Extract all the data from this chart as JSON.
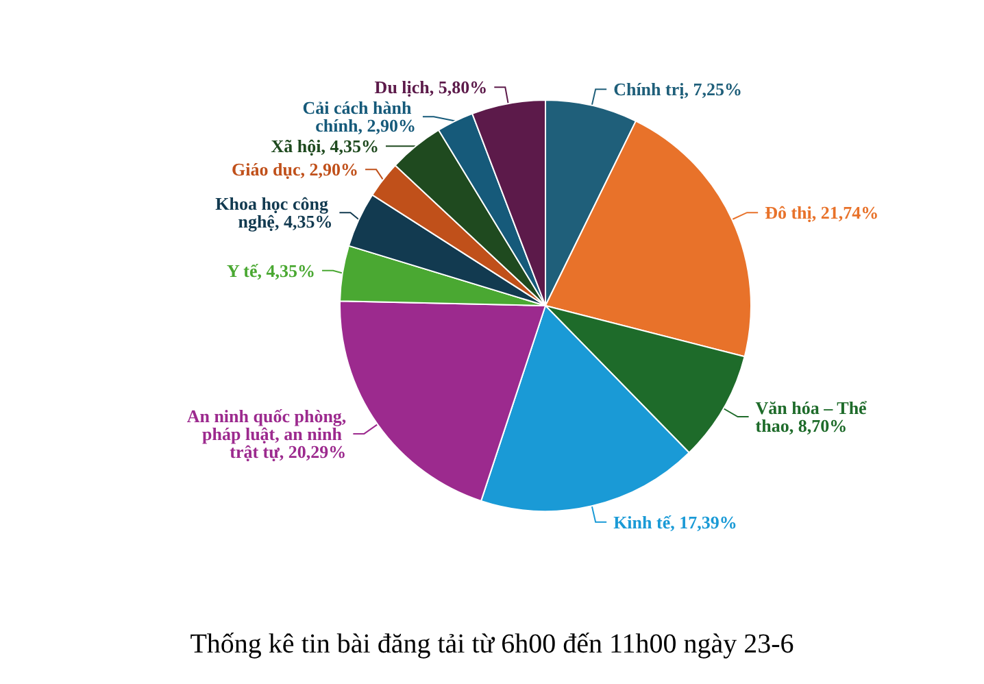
{
  "chart_data": {
    "type": "pie",
    "title": "Thống kê tin bài đăng tải từ 6h00 đến 11h00 ngày 23-6",
    "categories": [
      "Chính trị",
      "Đô thị",
      "Văn hóa – Thể thao",
      "Kinh tế",
      "An ninh quốc phòng, pháp luật, an ninh trật tự",
      "Y tế",
      "Khoa học công nghệ",
      "Giáo dục",
      "Xã hội",
      "Cải cách hành chính",
      "Du lịch"
    ],
    "values": [
      7.25,
      21.74,
      8.7,
      17.39,
      20.29,
      4.35,
      4.35,
      2.9,
      4.35,
      2.9,
      5.8
    ],
    "value_labels": [
      "7,25%",
      "21,74%",
      "8,70%",
      "17,39%",
      "20,29%",
      "4,35%",
      "4,35%",
      "2,90%",
      "4,35%",
      "2,90%",
      "5,80%"
    ],
    "colors": [
      "#1f5f7a",
      "#e8722a",
      "#1e6b2a",
      "#1a9ad6",
      "#9c2a8e",
      "#4aa832",
      "#123a50",
      "#c0501a",
      "#1f4a1f",
      "#165a7a",
      "#5c1a4a"
    ],
    "legend": false
  }
}
